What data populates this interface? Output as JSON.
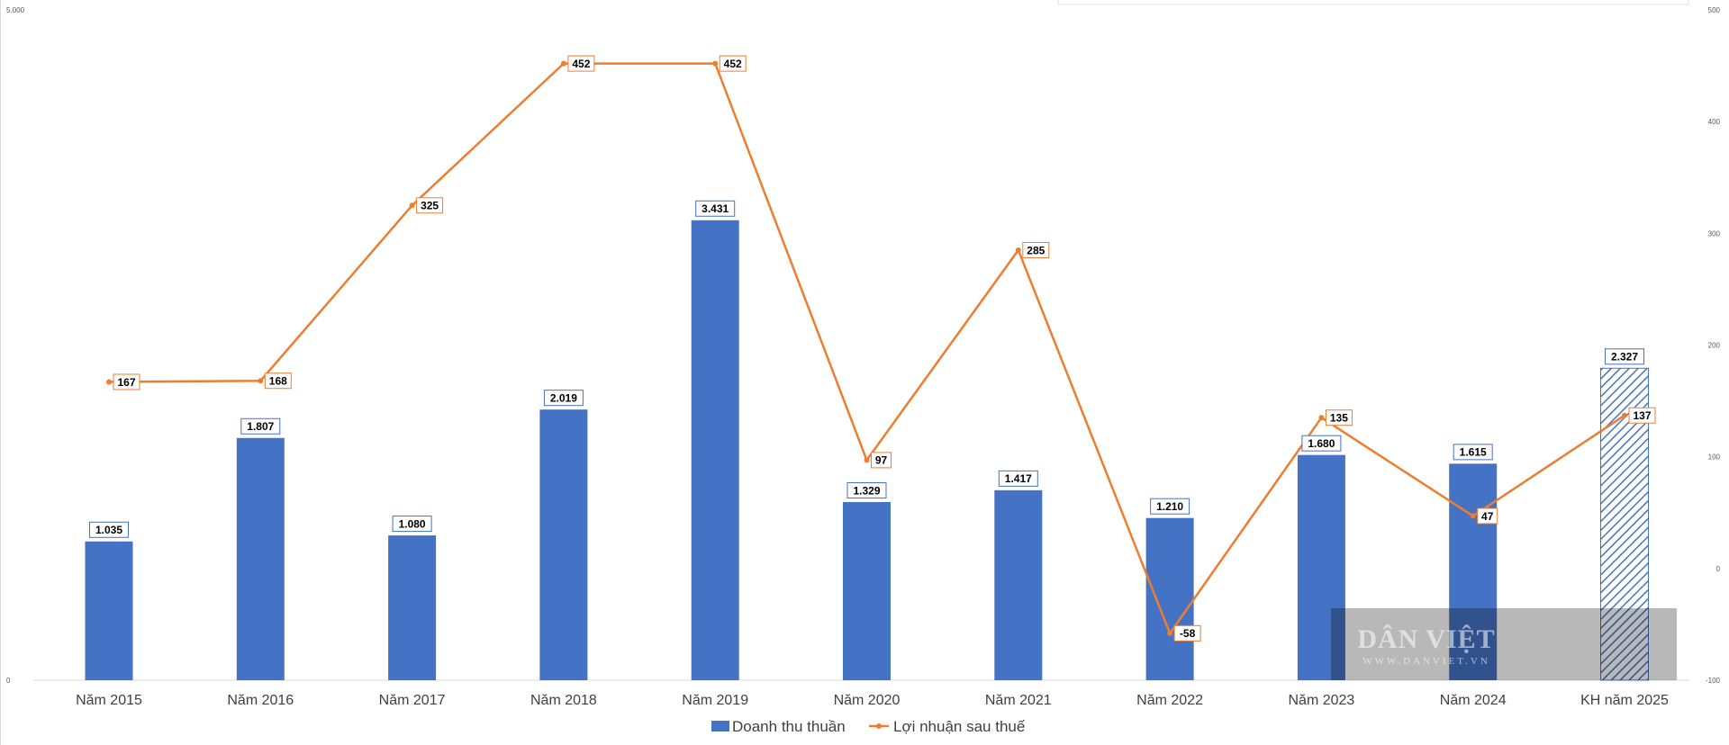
{
  "chart_data": {
    "type": "bar",
    "categories": [
      "Năm 2015",
      "Năm 2016",
      "Năm 2017",
      "Năm 2018",
      "Năm 2019",
      "Năm 2020",
      "Năm 2021",
      "Năm 2022",
      "Năm 2023",
      "Năm 2024",
      "KH năm 2025"
    ],
    "series": [
      {
        "name": "Doanh thu thuần",
        "type": "bar",
        "axis": "left",
        "color": "#4472C4",
        "values": [
          1035,
          1807,
          1080,
          2019,
          3431,
          1329,
          1417,
          1210,
          1680,
          1615,
          2327
        ],
        "labels": [
          "1.035",
          "1.807",
          "1.080",
          "2.019",
          "3.431",
          "1.329",
          "1.417",
          "1.210",
          "1.680",
          "1.615",
          "2.327"
        ],
        "planned_index": 10
      },
      {
        "name": "Lợi nhuận sau thuế",
        "type": "line",
        "axis": "right",
        "color": "#ED7D31",
        "values": [
          167,
          168,
          325,
          452,
          452,
          97,
          285,
          -58,
          135,
          47,
          137
        ],
        "labels": [
          "167",
          "168",
          "325",
          "452",
          "452",
          "97",
          "285",
          "-58",
          "135",
          "47",
          "137"
        ]
      }
    ],
    "y_left": {
      "min": 0,
      "max": 5000,
      "ticks": [
        0,
        5000
      ],
      "tick_labels": [
        "0",
        "5.000"
      ]
    },
    "y_right": {
      "min": -100,
      "max": 500,
      "ticks": [
        -100,
        0,
        100,
        200,
        300,
        400,
        500
      ],
      "tick_labels": [
        "-100",
        "0",
        "100",
        "200",
        "300",
        "400",
        "500"
      ]
    },
    "title": "",
    "xlabel": "",
    "ylabel": "",
    "grid": false,
    "legend": "bottom"
  },
  "watermark": {
    "main": "DÂN VIỆT",
    "sub": "WWW.DANVIET.VN"
  }
}
